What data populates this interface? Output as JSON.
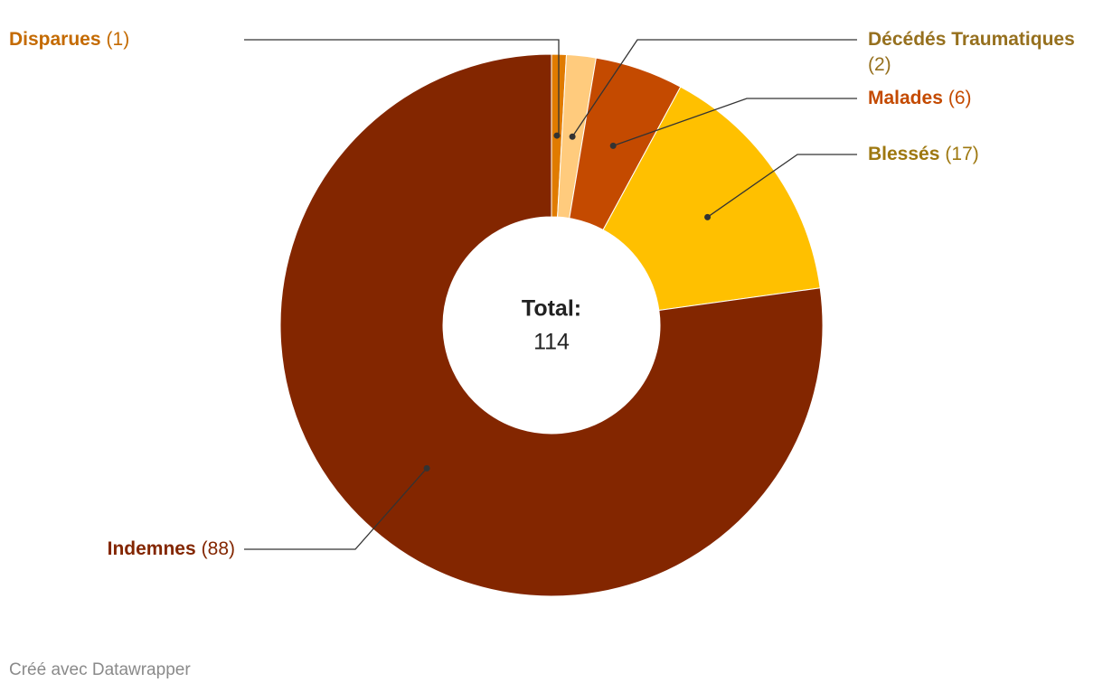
{
  "chart_data": {
    "type": "donut",
    "categories": [
      "Disparues",
      "Décédés Traumatiques",
      "Malades",
      "Blessés",
      "Indemnes"
    ],
    "values": [
      1,
      2,
      6,
      17,
      88
    ],
    "value_labels": [
      "(1)",
      "(2)",
      "(6)",
      "(17)",
      "(88)"
    ],
    "colors": [
      "#e07b00",
      "#ffcb7d",
      "#c44a00",
      "#ffc000",
      "#832600"
    ],
    "label_colors": [
      "#c46a00",
      "#96701e",
      "#c44a00",
      "#9e7810",
      "#832600"
    ],
    "center_title": "Total:",
    "center_value": 114,
    "footer": "Créé avec Datawrapper"
  }
}
